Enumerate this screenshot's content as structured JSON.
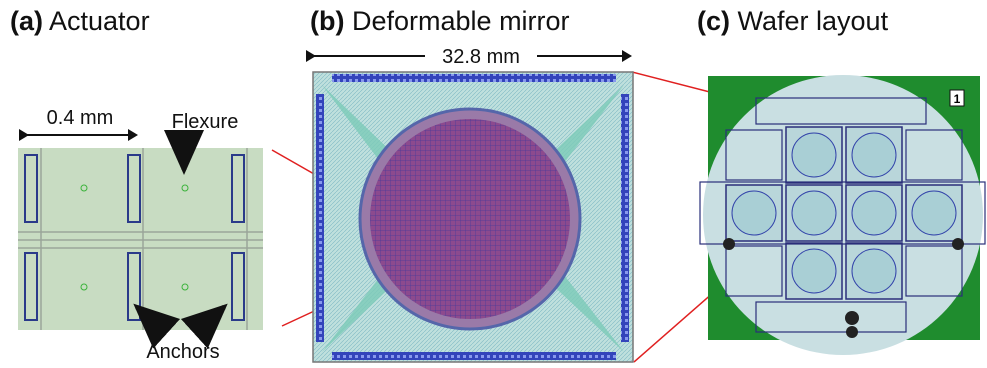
{
  "panels": [
    {
      "label": "(a)",
      "title": "Actuator",
      "annotations": {
        "scale": "0.4 mm",
        "flexure": "Flexure",
        "anchors": "Anchors"
      }
    },
    {
      "label": "(b)",
      "title": "Deformable mirror",
      "annotations": {
        "scale": "32.8 mm"
      }
    },
    {
      "label": "(c)",
      "title": "Wafer layout",
      "annotations": {
        "mark": "1"
      }
    }
  ]
}
